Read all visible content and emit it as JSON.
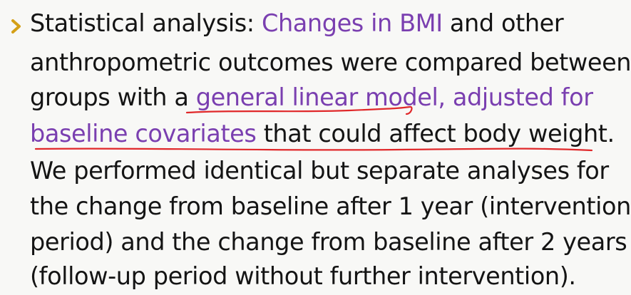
{
  "colors": {
    "text": "#141414",
    "highlight": "#7a3fb0",
    "bullet": "#d4a017",
    "underline": "#e0282a",
    "background": "#f8f8f6"
  },
  "bullet": {
    "icon": "chevron-right-icon"
  },
  "lines": [
    {
      "a": "Statistical analysis: ",
      "b": "Changes in BMI",
      "c": " and other"
    },
    {
      "a": "anthropometric outcomes were compared between"
    },
    {
      "a": "groups with a ",
      "b": "general linear model, adjusted for"
    },
    {
      "b": "baseline covariates",
      "c": " that could affect body weight."
    },
    {
      "a": "We performed identical but separate analyses for"
    },
    {
      "a": "the change from baseline after 1 year (intervention"
    },
    {
      "a": "period) and the change from baseline after 2 years"
    },
    {
      "a": "(follow-up period without further intervention)."
    }
  ]
}
